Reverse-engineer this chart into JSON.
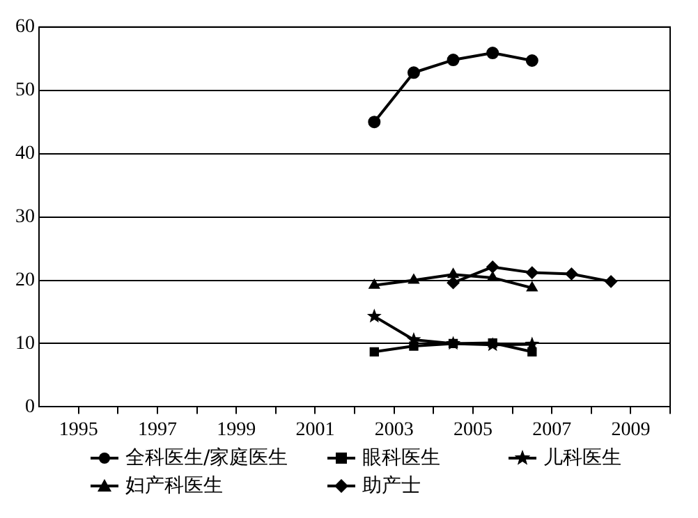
{
  "chart_data": {
    "type": "line",
    "xlim": [
      1994,
      2010
    ],
    "xticks": [
      1995,
      {
        "value": 1996,
        "label": null
      },
      1997,
      {
        "value": 1998,
        "label": null
      },
      1999,
      {
        "value": 2000,
        "label": null
      },
      2001,
      {
        "value": 2002,
        "label": null
      },
      2003,
      {
        "value": 2004,
        "label": null
      },
      2005,
      {
        "value": 2006,
        "label": null
      },
      2007,
      {
        "value": 2008,
        "label": null
      },
      2009,
      {
        "value": 2010,
        "label": null
      }
    ],
    "ylim": [
      0,
      60
    ],
    "yticks": [
      0,
      10,
      20,
      30,
      40,
      50,
      60
    ],
    "grid": "y",
    "legend": "bottom",
    "line_style": "solid",
    "series": [
      {
        "name": "全科医生/家庭医生",
        "color": "#000000",
        "marker": "circle",
        "x": [
          2002.5,
          2003.5,
          2004.5,
          2005.5,
          2006.5
        ],
        "values": [
          45.0,
          52.8,
          54.8,
          55.9,
          54.7
        ]
      },
      {
        "name": "眼科医生",
        "color": "#000000",
        "marker": "square",
        "x": [
          2002.5,
          2003.5,
          2004.5,
          2005.5,
          2006.5
        ],
        "values": [
          8.7,
          9.6,
          10.0,
          10.1,
          8.7
        ]
      },
      {
        "name": "儿科医生",
        "color": "#000000",
        "marker": "star",
        "x": [
          2002.5,
          2003.5,
          2004.5,
          2005.5,
          2006.5
        ],
        "values": [
          14.3,
          10.6,
          10.0,
          9.8,
          9.9
        ]
      },
      {
        "name": "妇产科医生",
        "color": "#000000",
        "marker": "triangle",
        "x": [
          2002.5,
          2003.5,
          2004.5,
          2005.5,
          2006.5
        ],
        "values": [
          19.2,
          20.0,
          20.9,
          20.4,
          18.8
        ]
      },
      {
        "name": "助产士",
        "color": "#000000",
        "marker": "diamond",
        "x": [
          2004.5,
          2005.5,
          2006.5,
          2007.5,
          2008.5
        ],
        "values": [
          19.6,
          22.1,
          21.2,
          21.0,
          19.8
        ]
      }
    ]
  }
}
